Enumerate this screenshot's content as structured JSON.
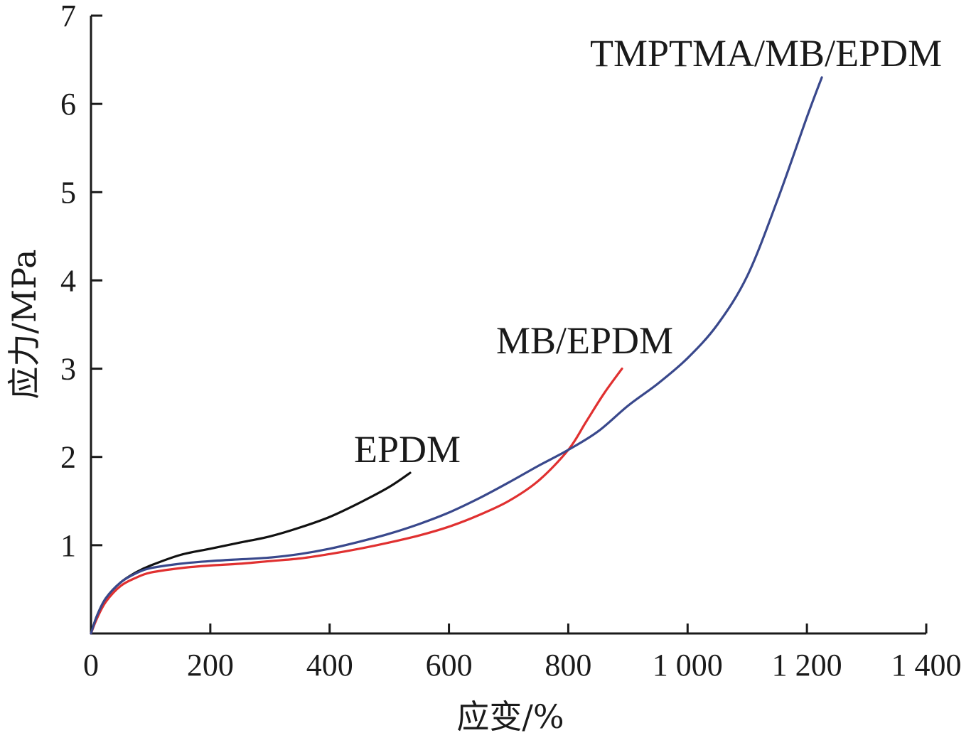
{
  "chart_data": {
    "type": "line",
    "xlabel": "应变/%",
    "ylabel": "应力/MPa",
    "xlim": [
      0,
      1400
    ],
    "ylim": [
      0,
      7
    ],
    "x_ticks": [
      0,
      200,
      400,
      600,
      800,
      1000,
      1200,
      1400
    ],
    "x_tick_labels": [
      "0",
      "200",
      "400",
      "600",
      "800",
      "1 000",
      "1 200",
      "1 400"
    ],
    "y_ticks": [
      1,
      2,
      3,
      4,
      5,
      6,
      7
    ],
    "y_tick_labels": [
      "1",
      "2",
      "3",
      "4",
      "5",
      "6",
      "7"
    ],
    "grid": false,
    "legend": "none",
    "series": [
      {
        "name": "EPDM",
        "color": "#111111",
        "x": [
          0,
          10,
          25,
          50,
          75,
          100,
          150,
          200,
          250,
          300,
          350,
          400,
          450,
          500,
          535
        ],
        "y": [
          0,
          0.2,
          0.4,
          0.58,
          0.69,
          0.77,
          0.89,
          0.96,
          1.03,
          1.1,
          1.2,
          1.32,
          1.48,
          1.66,
          1.82
        ]
      },
      {
        "name": "MB/EPDM",
        "color": "#e03030",
        "x": [
          0,
          10,
          25,
          50,
          75,
          100,
          150,
          200,
          250,
          300,
          350,
          400,
          450,
          500,
          550,
          600,
          650,
          700,
          750,
          800,
          830,
          860,
          890
        ],
        "y": [
          0,
          0.17,
          0.36,
          0.54,
          0.63,
          0.69,
          0.74,
          0.77,
          0.79,
          0.82,
          0.85,
          0.9,
          0.96,
          1.03,
          1.11,
          1.21,
          1.34,
          1.5,
          1.73,
          2.08,
          2.4,
          2.72,
          3.0
        ]
      },
      {
        "name": "TMPTMA/MB/EPDM",
        "color": "#39488c",
        "x": [
          0,
          10,
          25,
          50,
          75,
          100,
          150,
          200,
          250,
          300,
          350,
          400,
          450,
          500,
          550,
          600,
          650,
          700,
          750,
          800,
          850,
          900,
          950,
          1000,
          1050,
          1100,
          1150,
          1200,
          1225
        ],
        "y": [
          0,
          0.2,
          0.4,
          0.58,
          0.68,
          0.74,
          0.79,
          0.82,
          0.84,
          0.86,
          0.9,
          0.96,
          1.04,
          1.13,
          1.24,
          1.37,
          1.53,
          1.71,
          1.9,
          2.08,
          2.29,
          2.58,
          2.83,
          3.12,
          3.5,
          4.05,
          4.9,
          5.85,
          6.3
        ]
      }
    ],
    "annotations": [
      {
        "text": "EPDM",
        "series": "EPDM"
      },
      {
        "text": "MB/EPDM",
        "series": "MB/EPDM"
      },
      {
        "text": "TMPTMA/MB/EPDM",
        "series": "TMPTMA/MB/EPDM"
      }
    ]
  }
}
